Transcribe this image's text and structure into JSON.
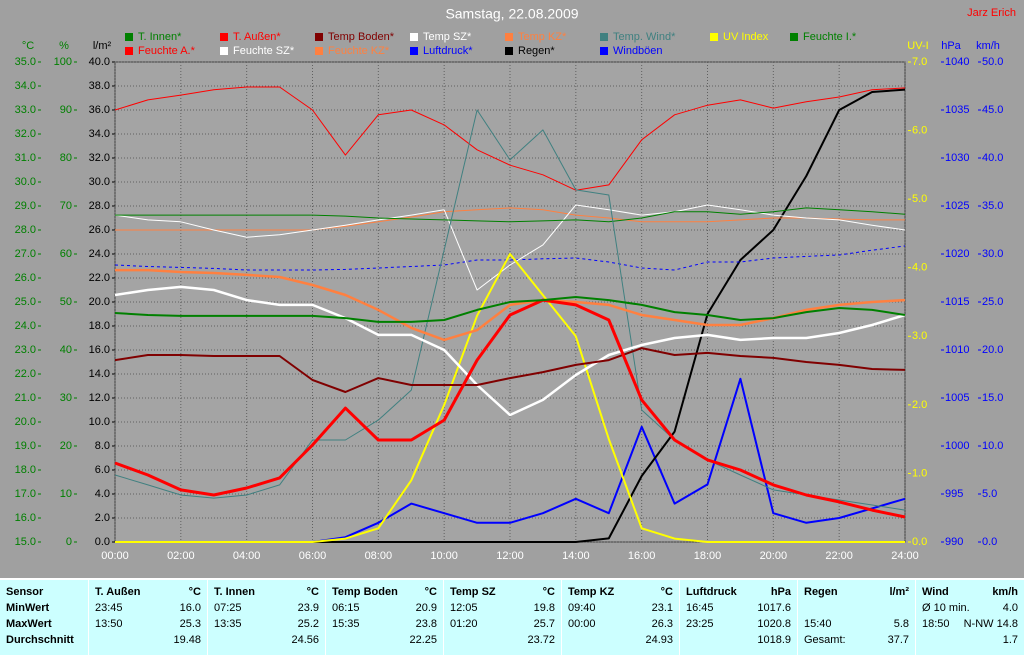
{
  "chart_data": {
    "type": "line",
    "title": "Samstag, 22.08.2009",
    "author": "Jarz Erich",
    "x": [
      0,
      1,
      2,
      3,
      4,
      5,
      6,
      7,
      8,
      9,
      10,
      11,
      12,
      13,
      14,
      15,
      16,
      17,
      18,
      19,
      20,
      21,
      22,
      23,
      24
    ],
    "xlim": [
      0,
      24
    ],
    "xticks": [
      {
        "value": 0,
        "label": "00:00"
      },
      {
        "value": 2,
        "label": "02:00"
      },
      {
        "value": 4,
        "label": "04:00"
      },
      {
        "value": 6,
        "label": "06:00"
      },
      {
        "value": 8,
        "label": "08:00"
      },
      {
        "value": 10,
        "label": "10:00"
      },
      {
        "value": 12,
        "label": "12:00"
      },
      {
        "value": 14,
        "label": "14:00"
      },
      {
        "value": 16,
        "label": "16:00"
      },
      {
        "value": 18,
        "label": "18:00"
      },
      {
        "value": 20,
        "label": "20:00"
      },
      {
        "value": 22,
        "label": "22:00"
      },
      {
        "value": 24,
        "label": "24:00"
      }
    ],
    "grid": true,
    "axes": [
      {
        "label": "°C",
        "color": "#008000",
        "lim": [
          15,
          35
        ],
        "ticks": [
          {
            "value": 15,
            "label": "15.0"
          },
          {
            "value": 16,
            "label": "16.0"
          },
          {
            "value": 17,
            "label": "17.0"
          },
          {
            "value": 18,
            "label": "18.0"
          },
          {
            "value": 19,
            "label": "19.0"
          },
          {
            "value": 20,
            "label": "20.0"
          },
          {
            "value": 21,
            "label": "21.0"
          },
          {
            "value": 22,
            "label": "22.0"
          },
          {
            "value": 23,
            "label": "23.0"
          },
          {
            "value": 24,
            "label": "24.0"
          },
          {
            "value": 25,
            "label": "25.0"
          },
          {
            "value": 26,
            "label": "26.0"
          },
          {
            "value": 27,
            "label": "27.0"
          },
          {
            "value": 28,
            "label": "28.0"
          },
          {
            "value": 29,
            "label": "29.0"
          },
          {
            "value": 30,
            "label": "30.0"
          },
          {
            "value": 31,
            "label": "31.0"
          },
          {
            "value": 32,
            "label": "32.0"
          },
          {
            "value": 33,
            "label": "33.0"
          },
          {
            "value": 34,
            "label": "34.0"
          },
          {
            "value": 35,
            "label": "35.0"
          }
        ]
      },
      {
        "label": "%",
        "color": "#008000",
        "lim": [
          0,
          100
        ],
        "ticks": [
          0,
          10,
          20,
          30,
          40,
          50,
          60,
          70,
          80,
          90,
          100
        ]
      },
      {
        "label": "l/m²",
        "color": "#000000",
        "lim": [
          0,
          40
        ],
        "ticks": [
          {
            "value": 0,
            "label": "0.0"
          },
          {
            "value": 2,
            "label": "2.0"
          },
          {
            "value": 4,
            "label": "4.0"
          },
          {
            "value": 6,
            "label": "6.0"
          },
          {
            "value": 8,
            "label": "8.0"
          },
          {
            "value": 10,
            "label": "10.0"
          },
          {
            "value": 12,
            "label": "12.0"
          },
          {
            "value": 14,
            "label": "14.0"
          },
          {
            "value": 16,
            "label": "16.0"
          },
          {
            "value": 18,
            "label": "18.0"
          },
          {
            "value": 20,
            "label": "20.0"
          },
          {
            "value": 22,
            "label": "22.0"
          },
          {
            "value": 24,
            "label": "24.0"
          },
          {
            "value": 26,
            "label": "26.0"
          },
          {
            "value": 28,
            "label": "28.0"
          },
          {
            "value": 30,
            "label": "30.0"
          },
          {
            "value": 32,
            "label": "32.0"
          },
          {
            "value": 34,
            "label": "34.0"
          },
          {
            "value": 36,
            "label": "36.0"
          },
          {
            "value": 38,
            "label": "38.0"
          },
          {
            "value": 40,
            "label": "40.0"
          }
        ]
      },
      {
        "label": "UV-I",
        "color": "#ffff00",
        "lim": [
          0,
          7
        ],
        "ticks": [
          {
            "value": 0,
            "label": "0.0"
          },
          {
            "value": 1,
            "label": "1.0"
          },
          {
            "value": 2,
            "label": "2.0"
          },
          {
            "value": 3,
            "label": "3.0"
          },
          {
            "value": 4,
            "label": "4.0"
          },
          {
            "value": 5,
            "label": "5.0"
          },
          {
            "value": 6,
            "label": "6.0"
          },
          {
            "value": 7,
            "label": "7.0"
          }
        ]
      },
      {
        "label": "hPa",
        "color": "#0000ff",
        "lim": [
          990,
          1040
        ],
        "ticks": [
          990,
          995,
          1000,
          1005,
          1010,
          1015,
          1020,
          1025,
          1030,
          1035,
          1040
        ]
      },
      {
        "label": "km/h",
        "color": "#0000ff",
        "lim": [
          0,
          50
        ],
        "ticks": [
          {
            "value": 0,
            "label": "0.0"
          },
          {
            "value": 5,
            "label": "5.0"
          },
          {
            "value": 10,
            "label": "10.0"
          },
          {
            "value": 15,
            "label": "15.0"
          },
          {
            "value": 20,
            "label": "20.0"
          },
          {
            "value": 25,
            "label": "25.0"
          },
          {
            "value": 30,
            "label": "30.0"
          },
          {
            "value": 35,
            "label": "35.0"
          },
          {
            "value": 40,
            "label": "40.0"
          },
          {
            "value": 45,
            "label": "45.0"
          },
          {
            "value": 50,
            "label": "50.0"
          }
        ]
      }
    ],
    "series": [
      {
        "name": "T. Innen*",
        "color": "#008000",
        "axis": "°C",
        "width": 2,
        "values": [
          24.54,
          24.46,
          24.42,
          24.42,
          24.42,
          24.42,
          24.42,
          24.33,
          24.17,
          24.17,
          24.25,
          24.67,
          25.0,
          25.08,
          25.21,
          25.08,
          24.88,
          24.58,
          24.46,
          24.25,
          24.33,
          24.58,
          24.75,
          24.67,
          24.46
        ]
      },
      {
        "name": "T. Außen*",
        "color": "#ff0000",
        "axis": "°C",
        "width": 3,
        "values": [
          18.29,
          17.79,
          17.17,
          16.96,
          17.25,
          17.67,
          19.04,
          20.58,
          19.25,
          19.25,
          20.08,
          22.58,
          24.46,
          25.08,
          24.88,
          24.25,
          20.92,
          19.25,
          18.42,
          18.0,
          17.38,
          16.96,
          16.67,
          16.33,
          16.04
        ]
      },
      {
        "name": "Temp Boden*",
        "color": "#800000",
        "axis": "°C",
        "width": 2,
        "values": [
          22.58,
          22.79,
          22.79,
          22.75,
          22.75,
          22.75,
          21.75,
          21.25,
          21.83,
          21.54,
          21.54,
          21.54,
          21.83,
          22.08,
          22.38,
          22.58,
          23.08,
          22.79,
          22.88,
          22.75,
          22.67,
          22.5,
          22.38,
          22.21,
          22.17
        ]
      },
      {
        "name": "Temp SZ*",
        "color": "#ffffff",
        "axis": "°C",
        "width": 2.5,
        "values": [
          25.29,
          25.5,
          25.63,
          25.5,
          25.08,
          24.88,
          24.88,
          24.33,
          23.63,
          23.63,
          23.0,
          21.54,
          20.29,
          20.92,
          21.96,
          22.79,
          23.21,
          23.5,
          23.63,
          23.42,
          23.5,
          23.5,
          23.71,
          24.04,
          24.46
        ]
      },
      {
        "name": "Temp KZ*",
        "color": "#ff8040",
        "axis": "°C",
        "width": 2.5,
        "values": [
          26.33,
          26.33,
          26.25,
          26.21,
          26.13,
          26.04,
          25.71,
          25.29,
          24.67,
          23.92,
          23.42,
          23.83,
          24.88,
          25.08,
          25.0,
          24.88,
          24.46,
          24.25,
          24.04,
          24.04,
          24.33,
          24.67,
          24.88,
          25.0,
          25.08
        ]
      },
      {
        "name": "Temp. Wind*",
        "color": "#408080",
        "axis": "°C",
        "width": 1,
        "values": [
          17.79,
          17.38,
          16.96,
          16.83,
          16.96,
          17.38,
          19.25,
          19.25,
          20.08,
          21.33,
          27.17,
          33.0,
          30.92,
          32.17,
          29.67,
          29.46,
          20.5,
          19.25,
          18.42,
          17.79,
          17.17,
          16.96,
          16.75,
          16.54,
          16.33
        ]
      },
      {
        "name": "UV Index",
        "color": "#ffff00",
        "axis": "UV-I",
        "width": 2,
        "values": [
          0,
          0,
          0,
          0,
          0,
          0,
          0,
          0.05,
          0.2,
          0.9,
          2.0,
          3.3,
          4.2,
          3.6,
          3.0,
          1.5,
          0.2,
          0.05,
          0,
          0,
          0,
          0,
          0,
          0,
          0
        ]
      },
      {
        "name": "Feuchte I.*",
        "color": "#008000",
        "axis": "%",
        "width": 1,
        "values": [
          68.1,
          68.1,
          68.1,
          68.1,
          68.1,
          68.1,
          68.1,
          67.9,
          67.5,
          67.3,
          67.1,
          66.9,
          66.7,
          66.9,
          67.1,
          66.7,
          67.5,
          68.8,
          68.8,
          68.3,
          68.8,
          69.6,
          69.2,
          68.8,
          68.3
        ]
      },
      {
        "name": "Feuchte A.*",
        "color": "#ff0000",
        "axis": "%",
        "width": 1,
        "values": [
          90,
          92.1,
          93.1,
          94.2,
          94.8,
          94.8,
          90,
          80.6,
          89,
          90,
          86.9,
          81.7,
          78.5,
          76.5,
          73.3,
          74.4,
          83.8,
          89,
          91,
          92.1,
          90.4,
          91.7,
          92.7,
          94.2,
          94.6
        ]
      },
      {
        "name": "Feuchte SZ*",
        "color": "#ffffff",
        "axis": "%",
        "width": 1,
        "values": [
          68.1,
          67.1,
          66.7,
          65.0,
          63.5,
          64.0,
          65.0,
          66.0,
          67.1,
          68.1,
          69.2,
          52.5,
          57.7,
          61.9,
          70.2,
          69.2,
          68.1,
          68.8,
          70.2,
          69.2,
          68.1,
          67.5,
          67.1,
          66.0,
          65.0
        ]
      },
      {
        "name": "Feuchte KZ*",
        "color": "#ff8040",
        "axis": "%",
        "width": 1,
        "values": [
          65.0,
          65.0,
          65.0,
          65.0,
          65.0,
          65.0,
          65.0,
          65.8,
          66.7,
          67.7,
          68.8,
          69.2,
          69.6,
          69.2,
          68.1,
          67.5,
          66.7,
          66.7,
          66.7,
          67.1,
          67.5,
          67.5,
          67.3,
          67.1,
          67.1
        ]
      },
      {
        "name": "Luftdruck*",
        "color": "#0000ff",
        "axis": "hPa",
        "width": 1,
        "dashed": true,
        "values": [
          1018.85,
          1018.7,
          1018.6,
          1018.5,
          1018.33,
          1018.33,
          1018.33,
          1018.4,
          1018.54,
          1018.7,
          1018.85,
          1019.38,
          1019.38,
          1019.5,
          1019.58,
          1019.17,
          1018.54,
          1018.33,
          1019.17,
          1019.17,
          1019.58,
          1019.75,
          1019.9,
          1020.4,
          1020.83
        ]
      },
      {
        "name": "Regen*",
        "color": "#000000",
        "axis": "l/m²",
        "width": 2,
        "values": [
          0,
          0,
          0,
          0,
          0,
          0,
          0,
          0,
          0,
          0,
          0,
          0,
          0,
          0,
          0,
          0.3,
          5.5,
          9.2,
          19.0,
          23.5,
          26.0,
          30.5,
          36.0,
          37.5,
          37.7
        ]
      },
      {
        "name": "Windböen",
        "color": "#0000ff",
        "axis": "km/h",
        "width": 2,
        "values": [
          0,
          0,
          0,
          0,
          0,
          0,
          0,
          0.5,
          2.0,
          4.0,
          3.0,
          2.0,
          2.0,
          3.0,
          4.5,
          3.0,
          12.0,
          4.0,
          6.0,
          17.0,
          3.0,
          2.0,
          2.5,
          3.5,
          4.5
        ]
      }
    ]
  },
  "table": {
    "row_labels": [
      "Sensor",
      "MinWert",
      "MaxWert",
      "Durchschnitt"
    ],
    "groups": [
      {
        "name": "T. Außen",
        "unit": "°C",
        "rows": [
          {
            "time": "23:45",
            "value": "16.0"
          },
          {
            "time": "13:50",
            "value": "25.3"
          },
          {
            "value": "19.48"
          }
        ]
      },
      {
        "name": "T. Innen",
        "unit": "°C",
        "rows": [
          {
            "time": "07:25",
            "value": "23.9"
          },
          {
            "time": "13:35",
            "value": "25.2"
          },
          {
            "value": "24.56"
          }
        ]
      },
      {
        "name": "Temp Boden",
        "unit": "°C",
        "rows": [
          {
            "time": "06:15",
            "value": "20.9"
          },
          {
            "time": "15:35",
            "value": "23.8"
          },
          {
            "value": "22.25"
          }
        ]
      },
      {
        "name": "Temp SZ",
        "unit": "°C",
        "rows": [
          {
            "time": "12:05",
            "value": "19.8"
          },
          {
            "time": "01:20",
            "value": "25.7"
          },
          {
            "value": "23.72"
          }
        ]
      },
      {
        "name": "Temp KZ",
        "unit": "°C",
        "rows": [
          {
            "time": "09:40",
            "value": "23.1"
          },
          {
            "time": "00:00",
            "value": "26.3"
          },
          {
            "value": "24.93"
          }
        ]
      },
      {
        "name": "Luftdruck",
        "unit": "hPa",
        "rows": [
          {
            "time": "16:45",
            "value": "1017.6"
          },
          {
            "time": "23:25",
            "value": "1020.8"
          },
          {
            "value": "1018.9"
          }
        ]
      },
      {
        "name": "Regen",
        "unit": "l/m²",
        "rows": [
          {},
          {
            "time": "15:40",
            "value": "5.8"
          },
          {
            "time": "Gesamt:",
            "value": "37.7"
          }
        ]
      },
      {
        "name": "Wind",
        "unit": "km/h",
        "rows": [
          {
            "time": "Ø 10 min.",
            "value": "4.0"
          },
          {
            "time": "18:50",
            "value": "N-NW 14.8"
          },
          {
            "value": "1.7"
          }
        ]
      }
    ]
  }
}
